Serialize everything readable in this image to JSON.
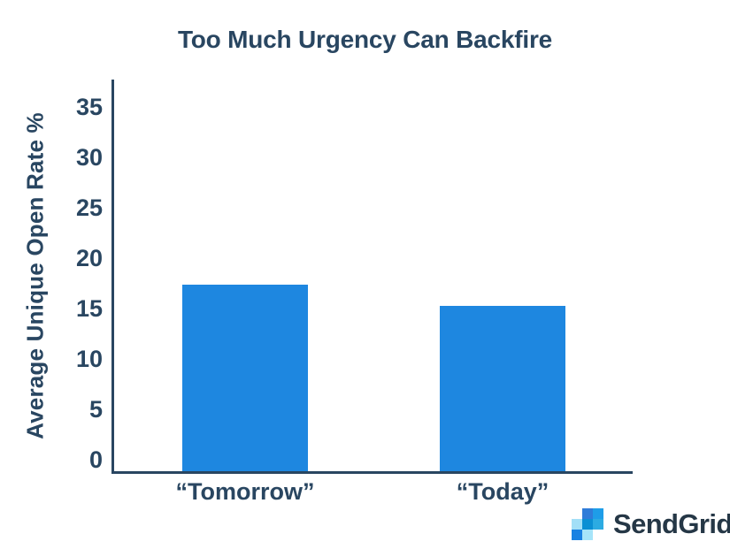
{
  "colors": {
    "navy": "#294661",
    "bar_blue": "#1E87E0",
    "logo_text_color": "#253746"
  },
  "chart_data": {
    "type": "bar",
    "title": "Too Much Urgency Can Backfire",
    "ylabel": "Average Unique Open Rate %",
    "xlabel": "",
    "categories": [
      "“Tomorrow”",
      "“Today”"
    ],
    "values": [
      17.4,
      15.3
    ],
    "yticks": [
      0,
      5,
      10,
      15,
      20,
      25,
      30,
      35
    ],
    "ylim": [
      0,
      37
    ],
    "grid": false,
    "legend": false,
    "bar_color": "#1E87E0",
    "axis_color": "#294661"
  },
  "brand": {
    "name": "SendGrid",
    "logo_mark_grid": [
      [
        "",
        "#2F7CD9",
        "#1E9DE8"
      ],
      [
        "#A2DFF7",
        "#0B8FD4",
        "#2CABE2"
      ],
      [
        "#1A82E2",
        "#A6E4F9",
        ""
      ]
    ]
  }
}
